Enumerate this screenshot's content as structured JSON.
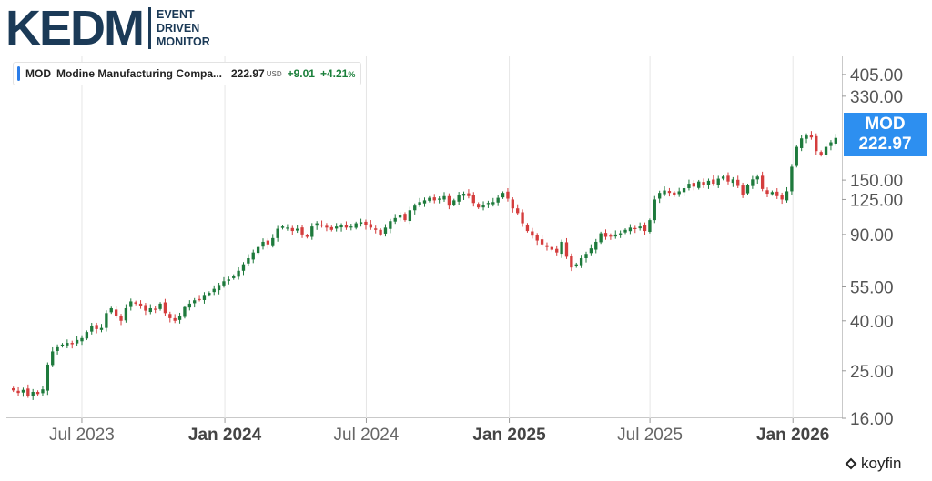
{
  "logo": {
    "text": "KEDM",
    "tagline": [
      "EVENT",
      "DRIVEN",
      "MONITOR"
    ]
  },
  "legend": {
    "ticker": "MOD",
    "name": "Modine Manufacturing Compa...",
    "price": "222.97",
    "currency": "USD",
    "change": "+9.01",
    "change_pct": "+4.21",
    "pct_sign": "%"
  },
  "price_tag": {
    "ticker": "MOD",
    "price": "222.97"
  },
  "watermark": "koyfin",
  "colors": {
    "up": "#1e7a3c",
    "down": "#d43d3d",
    "accent": "#2d8ff0",
    "gridline": "#e6e6e6",
    "logo": "#1b3a57"
  },
  "chart_data": {
    "type": "candlestick",
    "y_scale": "log",
    "ylim": [
      16,
      480
    ],
    "y_ticks": [
      "405.00",
      "330.00",
      "150.00",
      "125.00",
      "90.00",
      "55.00",
      "40.00",
      "25.00",
      "16.00"
    ],
    "x_ticks": [
      {
        "label": "Jul 2023",
        "date": "2023-07-01",
        "bold": false
      },
      {
        "label": "Jan 2024",
        "date": "2024-01-01",
        "bold": true
      },
      {
        "label": "Jul 2024",
        "date": "2024-07-01",
        "bold": false
      },
      {
        "label": "Jan 2025",
        "date": "2025-01-01",
        "bold": true
      },
      {
        "label": "Jul 2025",
        "date": "2025-07-01",
        "bold": false
      },
      {
        "label": "Jan 2026",
        "date": "2026-01-01",
        "bold": true
      }
    ],
    "x_range": [
      "2023-03-27",
      "2026-03-05"
    ],
    "last_price": 222.97,
    "weekly_close": [
      20.8,
      20.3,
      20.9,
      19.8,
      20.5,
      20.1,
      21.0,
      26.5,
      30.0,
      31.2,
      32.0,
      32.5,
      32.1,
      33.4,
      34.0,
      36.0,
      38.0,
      37.0,
      37.4,
      43.0,
      45.0,
      42.0,
      40.0,
      45.0,
      48.0,
      47.0,
      46.0,
      44.0,
      45.0,
      44.5,
      47.0,
      43.0,
      41.0,
      40.0,
      42.0,
      45.5,
      47.0,
      48.5,
      49.0,
      51.0,
      52.0,
      54.0,
      56.0,
      58.0,
      59.0,
      61.0,
      64.0,
      68.0,
      72.0,
      76.0,
      80.0,
      84.0,
      82.0,
      87.0,
      95.0,
      97.0,
      96.0,
      93.0,
      95.0,
      90.0,
      88.0,
      97.0,
      100.0,
      98.0,
      96.0,
      94.0,
      97.0,
      98.0,
      96.0,
      97.0,
      100.0,
      101.0,
      98.0,
      96.0,
      94.0,
      90.0,
      96.0,
      102.0,
      105.0,
      108.0,
      103.0,
      113.0,
      118.0,
      122.0,
      124.0,
      127.0,
      124.0,
      126.0,
      129.0,
      118.0,
      124.0,
      130.0,
      132.0,
      129.0,
      121.0,
      116.0,
      119.0,
      121.0,
      122.0,
      127.0,
      133.0,
      126.0,
      115.0,
      110.0,
      100.0,
      93.0,
      89.0,
      85.0,
      82.0,
      80.0,
      78.0,
      76.0,
      84.0,
      73.0,
      66.0,
      68.0,
      72.0,
      75.0,
      79.0,
      84.0,
      91.0,
      88.0,
      89.0,
      90.0,
      91.0,
      94.0,
      96.0,
      95.0,
      97.0,
      93.0,
      103.0,
      125.0,
      133.0,
      136.0,
      133.0,
      130.0,
      135.0,
      139.0,
      145.0,
      141.0,
      148.0,
      143.0,
      149.0,
      145.0,
      152.0,
      155.0,
      148.0,
      151.0,
      142.0,
      131.0,
      143.0,
      151.0,
      155.0,
      138.0,
      132.0,
      134.0,
      129.0,
      125.0,
      135.0,
      170.0,
      205.0,
      222.0,
      228.0,
      224.0,
      197.0,
      190.0,
      205.0,
      214.0,
      222.97
    ]
  }
}
